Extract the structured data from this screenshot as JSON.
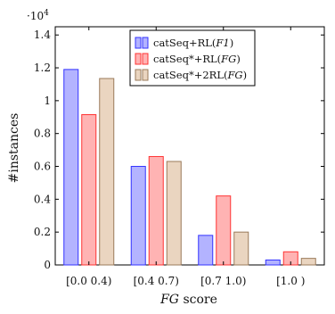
{
  "chart_data": {
    "type": "bar",
    "categories": [
      "[0.0 0.4)",
      "[0.4 0.7)",
      "[0.7 1.0)",
      "[1.0 )"
    ],
    "series": [
      {
        "name": "catSeq+RL(F1)",
        "name_base": "catSeq+RL(",
        "name_italic": "F1",
        "name_end": ")",
        "values": [
          11900,
          6000,
          1800,
          300
        ],
        "fill": "#b3b3ff",
        "stroke": "#3333ff"
      },
      {
        "name": "catSeq*+RL(FG)",
        "name_base": "catSeq*+RL(",
        "name_italic": "FG",
        "name_end": ")",
        "values": [
          9150,
          6600,
          4200,
          800
        ],
        "fill": "#ffb3b3",
        "stroke": "#ff3333"
      },
      {
        "name": "catSeq*+2RL(FG)",
        "name_base": "catSeq*+2RL(",
        "name_italic": "FG",
        "name_end": ")",
        "values": [
          11350,
          6300,
          2000,
          400
        ],
        "fill": "#ead5c0",
        "stroke": "#9a7a5a"
      }
    ],
    "ylim": [
      0,
      14500
    ],
    "yticks": [
      0,
      2000,
      4000,
      6000,
      8000,
      10000,
      12000,
      14000
    ],
    "ytick_labels": [
      "0",
      "0.2",
      "0.4",
      "0.6",
      "0.8",
      "1",
      "1.2",
      "1.4"
    ],
    "y_exponent_base": "·10",
    "y_exponent_power": "4",
    "xlabel_italic": "FG",
    "xlabel_rest": " score",
    "ylabel": "#instances",
    "legend_position": "top-right",
    "grid": false
  }
}
